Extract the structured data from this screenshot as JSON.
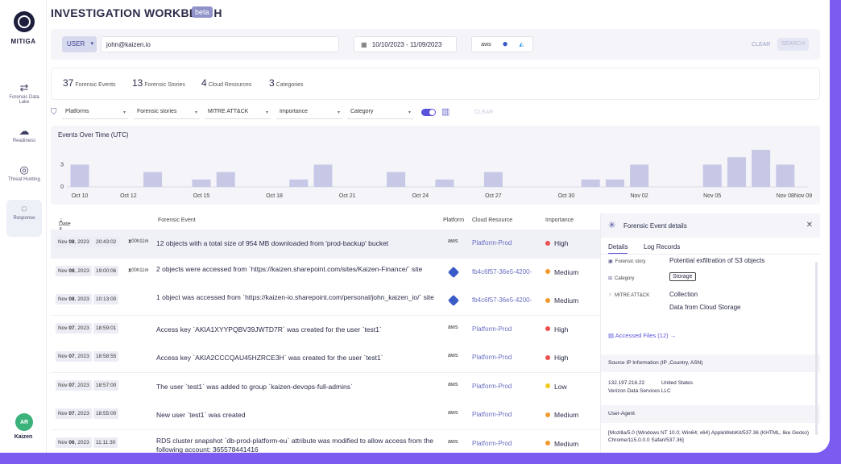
{
  "app": {
    "title": "INVESTIGATION WORKBENCH",
    "badge": "beta",
    "brand": "MITIGA"
  },
  "nav": [
    {
      "label": "Forensic Data Lake",
      "icon": "data-lake-icon",
      "glyph": "⇄"
    },
    {
      "label": "Readiness",
      "icon": "cloud-icon",
      "glyph": "☁"
    },
    {
      "label": "Threat Hunting",
      "icon": "target-icon",
      "glyph": "◎"
    },
    {
      "label": "Response",
      "icon": "response-icon",
      "glyph": "◌"
    }
  ],
  "user": {
    "initials": "AR",
    "org": "Kaizen"
  },
  "search": {
    "type": "USER",
    "value": "john@kaizen.io",
    "date_range": "10/10/2023 - 11/09/2023",
    "providers": [
      "aws",
      "m365",
      "azure"
    ],
    "clear": "CLEAR",
    "submit": "SEARCH"
  },
  "stats": [
    {
      "count": "37",
      "label": "Forensic Events"
    },
    {
      "count": "13",
      "label": "Forensic Stories"
    },
    {
      "count": "4",
      "label": "Cloud Resources"
    },
    {
      "count": "3",
      "label": "Categories"
    }
  ],
  "filters": {
    "items": [
      "Platforms",
      "Forensic stories",
      "MITRE ATT&CK",
      "Importance",
      "Category"
    ],
    "clear": "CLEAR"
  },
  "chart_data": {
    "type": "bar",
    "title": "Events Over Time (UTC)",
    "x": [
      "Oct 10",
      "Oct 11",
      "Oct 12",
      "Oct 13",
      "Oct 14",
      "Oct 15",
      "Oct 16",
      "Oct 17",
      "Oct 18",
      "Oct 19",
      "Oct 20",
      "Oct 21",
      "Oct 22",
      "Oct 23",
      "Oct 24",
      "Oct 25",
      "Oct 26",
      "Oct 27",
      "Oct 28",
      "Oct 29",
      "Oct 30",
      "Oct 31",
      "Nov 01",
      "Nov 02",
      "Nov 03",
      "Nov 04",
      "Nov 05",
      "Nov 06",
      "Nov 07",
      "Nov 08",
      "Nov 09"
    ],
    "tick_labels": [
      "Oct 10",
      "Oct 12",
      "Oct 15",
      "Oct 18",
      "Oct 21",
      "Oct 24",
      "Oct 27",
      "Oct 30",
      "Nov 02",
      "Nov 05",
      "Nov 08",
      "Nov 09"
    ],
    "values": [
      3,
      0,
      0,
      2,
      0,
      1,
      2,
      0,
      0,
      1,
      3,
      0,
      0,
      2,
      0,
      1,
      0,
      2,
      0,
      0,
      0,
      1,
      1,
      3,
      0,
      0,
      3,
      4,
      5,
      3,
      0
    ],
    "ylim": [
      0,
      5
    ],
    "yticks": [
      "3",
      "0"
    ],
    "xlabel": "",
    "ylabel": "",
    "grid": false
  },
  "table": {
    "headers": {
      "date": "Date & Time (UTC)",
      "event": "Forensic Event",
      "platform": "Platform",
      "resource": "Cloud Resource",
      "importance": "Importance"
    },
    "rows": [
      {
        "month": "Nov",
        "day": "08",
        "year": "2023",
        "time": "20:43:02",
        "duration": "00h11m",
        "event": "12 objects with a total size of 954 MB downloaded from 'prod-backup' bucket",
        "platform": "aws",
        "resource": "Platform-Prod",
        "importance": "High",
        "color": "#ef4f4f"
      },
      {
        "month": "Nov",
        "day": "08",
        "year": "2023",
        "time": "19:00:06",
        "duration": "00h11m",
        "event": "2 objects were accessed from `https://kaizen.sharepoint.com/sites/Kaizen-Finance/` site",
        "platform": "m365",
        "resource": "fb4c6f57-36e5-4200-",
        "importance": "Medium",
        "color": "#f39a2c"
      },
      {
        "month": "Nov",
        "day": "08",
        "year": "2023",
        "time": "10:13:00",
        "duration": "",
        "event": "1 object was accessed from `https://kaizen-io.sharepoint.com/personal/john_kaizen_io/` site",
        "platform": "m365",
        "resource": "fb4c6f57-36e5-4200-",
        "importance": "Medium",
        "color": "#f39a2c"
      },
      {
        "month": "Nov",
        "day": "07",
        "year": "2023",
        "time": "18:59:01",
        "duration": "",
        "event": "Access key `AKIA1XYYPQBV39JWTD7R` was created for the user `test1`",
        "platform": "aws",
        "resource": "Platform-Prod",
        "importance": "High",
        "color": "#ef4f4f"
      },
      {
        "month": "Nov",
        "day": "07",
        "year": "2023",
        "time": "18:58:55",
        "duration": "",
        "event": "Access key `AKIA2CCCQAU45HZRCE3H` was created for the user `test1`",
        "platform": "aws",
        "resource": "Platform-Prod",
        "importance": "High",
        "color": "#ef4f4f"
      },
      {
        "month": "Nov",
        "day": "07",
        "year": "2023",
        "time": "18:57:00",
        "duration": "",
        "event": "The user `test1` was added to group `kaizen-devops-full-admins`",
        "platform": "aws",
        "resource": "Platform-Prod",
        "importance": "Low",
        "color": "#f2c81f"
      },
      {
        "month": "Nov",
        "day": "07",
        "year": "2023",
        "time": "18:55:00",
        "duration": "",
        "event": "New user `test1` was created",
        "platform": "aws",
        "resource": "Platform-Prod",
        "importance": "Medium",
        "color": "#f39a2c"
      },
      {
        "month": "Nov",
        "day": "06",
        "year": "2023",
        "time": "11:11:30",
        "duration": "",
        "event": "RDS cluster snapshot `db-prod-platform-eu` attribute was modified to allow access from the following account: 365578441416",
        "platform": "aws",
        "resource": "Platform-Prod",
        "importance": "Medium",
        "color": "#f39a2c"
      }
    ]
  },
  "details": {
    "title": "Forensic Event details",
    "tabs": [
      "Details",
      "Log Records"
    ],
    "forensic_story_label": "Forensic story",
    "forensic_story": "Potential exfiltration of S3 objects",
    "category_label": "Category",
    "category": "Storage",
    "mitre_label": "MITRE ATT&CK",
    "mitre_1": "Collection",
    "mitre_2": "Data from Cloud Storage",
    "accessed_files": "Accessed Files (12) →",
    "source_ip_title": "Source IP Information (IP ,Country, ASN)",
    "ip": "132.197.216.22",
    "country": "United States",
    "asn": "Verizon Data Services LLC",
    "ua_title": "User-Agent",
    "ua": "[Mozilla/5.0 (Windows NT 10.0; Win64; x64) AppleWebKit/537.36 (KHTML, like Gecko) Chrome/115.0.0.0 Safari/537.36]"
  }
}
